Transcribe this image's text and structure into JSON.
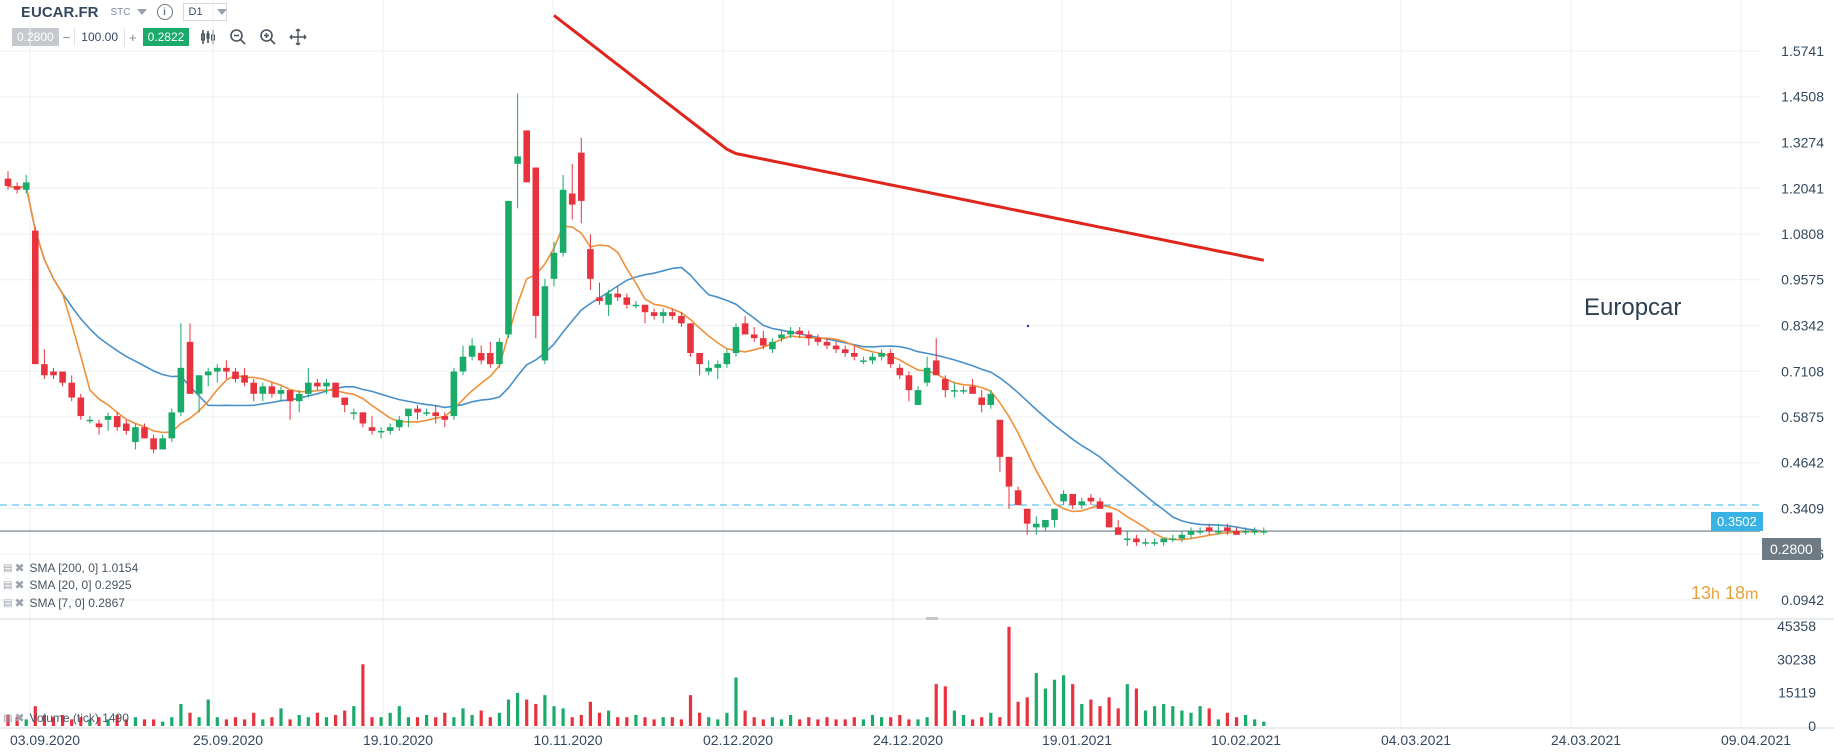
{
  "toolbar": {
    "symbol": "EUCAR.FR",
    "exchange": "STC",
    "timeframe": "D1",
    "bid": "0.2800",
    "quantity": "100.00",
    "ask": "0.2822",
    "icons": [
      "chart-type-icon",
      "zoom-out-icon",
      "zoom-in-icon",
      "crosshair-icon"
    ]
  },
  "watermark": "Europcar",
  "countdown": {
    "h": "13",
    "h_unit": "h",
    "m": "18",
    "m_unit": "m"
  },
  "legends": {
    "sma200": "SMA [200, 0] 1.0154",
    "sma20": "SMA [20, 0] 0.2925",
    "sma7": "SMA [7, 0] 0.2867",
    "volume": "Volume (tick) 1490"
  },
  "badges": {
    "current": "0.2800",
    "level": "0.3502"
  },
  "colors": {
    "up": "#1aaa6a",
    "down": "#e8333f",
    "sma200": "#e0251d",
    "sma20": "#4a90c8",
    "sma7": "#f0913a",
    "level_line": "#39b3e6",
    "current_line": "#6e7a84"
  },
  "chart_data": {
    "type": "candlestick",
    "price_ticks": [
      "1.5741",
      "1.4508",
      "1.3274",
      "1.2041",
      "1.0808",
      "0.9575",
      "0.8342",
      "0.7108",
      "0.5875",
      "0.4642",
      "0.3409",
      "0.2176",
      "0.0942"
    ],
    "volume_ticks": [
      "45358",
      "30238",
      "15119",
      "0"
    ],
    "x_ticks": [
      "03.09.2020",
      "25.09.2020",
      "19.10.2020",
      "10.11.2020",
      "02.12.2020",
      "24.12.2020",
      "19.01.2021",
      "10.02.2021",
      "04.03.2021",
      "24.03.2021",
      "09.04.2021"
    ],
    "current_price": 0.28,
    "level_price": 0.3502,
    "candles": [
      [
        1.23,
        1.25,
        1.2,
        1.21
      ],
      [
        1.21,
        1.22,
        1.19,
        1.2
      ],
      [
        1.2,
        1.24,
        1.19,
        1.22
      ],
      [
        1.09,
        1.1,
        0.73,
        0.73
      ],
      [
        0.73,
        0.77,
        0.69,
        0.7
      ],
      [
        0.71,
        0.72,
        0.69,
        0.7
      ],
      [
        0.71,
        0.71,
        0.67,
        0.68
      ],
      [
        0.68,
        0.7,
        0.63,
        0.64
      ],
      [
        0.64,
        0.65,
        0.58,
        0.59
      ],
      [
        0.58,
        0.59,
        0.57,
        0.58
      ],
      [
        0.57,
        0.58,
        0.54,
        0.56
      ],
      [
        0.58,
        0.6,
        0.55,
        0.59
      ],
      [
        0.59,
        0.6,
        0.55,
        0.56
      ],
      [
        0.57,
        0.58,
        0.54,
        0.55
      ],
      [
        0.52,
        0.57,
        0.5,
        0.56
      ],
      [
        0.56,
        0.57,
        0.53,
        0.53
      ],
      [
        0.53,
        0.54,
        0.49,
        0.5
      ],
      [
        0.5,
        0.54,
        0.5,
        0.53
      ],
      [
        0.53,
        0.61,
        0.52,
        0.6
      ],
      [
        0.6,
        0.84,
        0.59,
        0.72
      ],
      [
        0.79,
        0.84,
        0.65,
        0.65
      ],
      [
        0.65,
        0.7,
        0.6,
        0.7
      ],
      [
        0.7,
        0.72,
        0.67,
        0.71
      ],
      [
        0.71,
        0.73,
        0.68,
        0.72
      ],
      [
        0.72,
        0.74,
        0.69,
        0.71
      ],
      [
        0.71,
        0.72,
        0.68,
        0.69
      ],
      [
        0.7,
        0.72,
        0.67,
        0.68
      ],
      [
        0.68,
        0.69,
        0.63,
        0.65
      ],
      [
        0.65,
        0.68,
        0.63,
        0.67
      ],
      [
        0.67,
        0.68,
        0.64,
        0.65
      ],
      [
        0.65,
        0.67,
        0.63,
        0.66
      ],
      [
        0.66,
        0.66,
        0.58,
        0.63
      ],
      [
        0.63,
        0.66,
        0.6,
        0.65
      ],
      [
        0.65,
        0.72,
        0.64,
        0.68
      ],
      [
        0.68,
        0.69,
        0.66,
        0.67
      ],
      [
        0.67,
        0.69,
        0.65,
        0.68
      ],
      [
        0.68,
        0.68,
        0.64,
        0.64
      ],
      [
        0.64,
        0.64,
        0.6,
        0.62
      ],
      [
        0.6,
        0.61,
        0.58,
        0.6
      ],
      [
        0.6,
        0.6,
        0.56,
        0.57
      ],
      [
        0.56,
        0.59,
        0.54,
        0.55
      ],
      [
        0.55,
        0.56,
        0.53,
        0.55
      ],
      [
        0.55,
        0.57,
        0.54,
        0.56
      ],
      [
        0.56,
        0.59,
        0.55,
        0.58
      ],
      [
        0.59,
        0.61,
        0.56,
        0.61
      ],
      [
        0.61,
        0.62,
        0.58,
        0.6
      ],
      [
        0.6,
        0.61,
        0.59,
        0.6
      ],
      [
        0.6,
        0.62,
        0.57,
        0.59
      ],
      [
        0.59,
        0.6,
        0.56,
        0.58
      ],
      [
        0.59,
        0.72,
        0.58,
        0.71
      ],
      [
        0.71,
        0.78,
        0.7,
        0.75
      ],
      [
        0.75,
        0.8,
        0.74,
        0.78
      ],
      [
        0.76,
        0.78,
        0.73,
        0.74
      ],
      [
        0.76,
        0.79,
        0.72,
        0.73
      ],
      [
        0.73,
        0.8,
        0.72,
        0.79
      ],
      [
        0.81,
        1.17,
        0.8,
        1.17
      ],
      [
        1.27,
        1.46,
        1.15,
        1.29
      ],
      [
        1.36,
        1.36,
        1.22,
        1.22
      ],
      [
        1.26,
        1.26,
        0.8,
        0.86
      ],
      [
        0.74,
        0.96,
        0.73,
        0.94
      ],
      [
        0.96,
        1.06,
        0.94,
        1.03
      ],
      [
        1.03,
        1.24,
        1.02,
        1.2
      ],
      [
        1.19,
        1.27,
        1.12,
        1.16
      ],
      [
        1.3,
        1.34,
        1.11,
        1.17
      ],
      [
        1.04,
        1.08,
        0.93,
        0.96
      ],
      [
        0.91,
        0.95,
        0.89,
        0.9
      ],
      [
        0.89,
        0.93,
        0.86,
        0.92
      ],
      [
        0.92,
        0.94,
        0.9,
        0.91
      ],
      [
        0.91,
        0.92,
        0.88,
        0.89
      ],
      [
        0.89,
        0.9,
        0.88,
        0.89
      ],
      [
        0.89,
        0.89,
        0.84,
        0.87
      ],
      [
        0.87,
        0.88,
        0.85,
        0.86
      ],
      [
        0.86,
        0.88,
        0.84,
        0.87
      ],
      [
        0.87,
        0.88,
        0.85,
        0.86
      ],
      [
        0.86,
        0.87,
        0.83,
        0.84
      ],
      [
        0.84,
        0.84,
        0.75,
        0.76
      ],
      [
        0.76,
        0.76,
        0.7,
        0.73
      ],
      [
        0.71,
        0.74,
        0.7,
        0.72
      ],
      [
        0.72,
        0.74,
        0.69,
        0.73
      ],
      [
        0.73,
        0.77,
        0.72,
        0.76
      ],
      [
        0.76,
        0.84,
        0.75,
        0.83
      ],
      [
        0.84,
        0.86,
        0.81,
        0.81
      ],
      [
        0.81,
        0.83,
        0.79,
        0.8
      ],
      [
        0.8,
        0.82,
        0.77,
        0.78
      ],
      [
        0.77,
        0.8,
        0.76,
        0.79
      ],
      [
        0.8,
        0.82,
        0.79,
        0.81
      ],
      [
        0.81,
        0.83,
        0.8,
        0.82
      ],
      [
        0.82,
        0.83,
        0.8,
        0.81
      ],
      [
        0.81,
        0.82,
        0.78,
        0.8
      ],
      [
        0.8,
        0.81,
        0.78,
        0.79
      ],
      [
        0.79,
        0.8,
        0.77,
        0.78
      ],
      [
        0.78,
        0.79,
        0.76,
        0.77
      ],
      [
        0.77,
        0.78,
        0.75,
        0.76
      ],
      [
        0.76,
        0.78,
        0.74,
        0.75
      ],
      [
        0.74,
        0.75,
        0.73,
        0.74
      ],
      [
        0.74,
        0.76,
        0.73,
        0.75
      ],
      [
        0.75,
        0.77,
        0.74,
        0.76
      ],
      [
        0.76,
        0.77,
        0.72,
        0.73
      ],
      [
        0.72,
        0.73,
        0.69,
        0.7
      ],
      [
        0.7,
        0.71,
        0.63,
        0.66
      ],
      [
        0.62,
        0.67,
        0.62,
        0.66
      ],
      [
        0.68,
        0.75,
        0.67,
        0.72
      ],
      [
        0.74,
        0.8,
        0.7,
        0.7
      ],
      [
        0.69,
        0.7,
        0.64,
        0.66
      ],
      [
        0.66,
        0.68,
        0.64,
        0.66
      ],
      [
        0.66,
        0.67,
        0.65,
        0.66
      ],
      [
        0.67,
        0.69,
        0.65,
        0.65
      ],
      [
        0.64,
        0.66,
        0.6,
        0.62
      ],
      [
        0.62,
        0.66,
        0.61,
        0.65
      ],
      [
        0.58,
        0.58,
        0.44,
        0.48
      ],
      [
        0.48,
        0.48,
        0.34,
        0.4
      ],
      [
        0.39,
        0.4,
        0.35,
        0.35
      ],
      [
        0.34,
        0.34,
        0.27,
        0.3
      ],
      [
        0.29,
        0.32,
        0.27,
        0.3
      ],
      [
        0.29,
        0.31,
        0.28,
        0.31
      ],
      [
        0.31,
        0.34,
        0.29,
        0.34
      ],
      [
        0.36,
        0.39,
        0.35,
        0.38
      ],
      [
        0.38,
        0.38,
        0.34,
        0.35
      ],
      [
        0.35,
        0.37,
        0.34,
        0.36
      ],
      [
        0.37,
        0.38,
        0.35,
        0.36
      ],
      [
        0.36,
        0.37,
        0.34,
        0.34
      ],
      [
        0.33,
        0.33,
        0.29,
        0.29
      ],
      [
        0.29,
        0.31,
        0.27,
        0.27
      ],
      [
        0.26,
        0.28,
        0.24,
        0.26
      ],
      [
        0.26,
        0.27,
        0.24,
        0.25
      ],
      [
        0.25,
        0.26,
        0.24,
        0.25
      ],
      [
        0.25,
        0.26,
        0.24,
        0.25
      ],
      [
        0.25,
        0.26,
        0.24,
        0.26
      ],
      [
        0.26,
        0.27,
        0.25,
        0.26
      ],
      [
        0.26,
        0.28,
        0.25,
        0.27
      ],
      [
        0.27,
        0.29,
        0.26,
        0.28
      ],
      [
        0.28,
        0.29,
        0.27,
        0.28
      ],
      [
        0.29,
        0.3,
        0.27,
        0.28
      ],
      [
        0.28,
        0.3,
        0.27,
        0.28
      ],
      [
        0.29,
        0.3,
        0.27,
        0.28
      ],
      [
        0.28,
        0.29,
        0.27,
        0.27
      ],
      [
        0.28,
        0.29,
        0.27,
        0.28
      ],
      [
        0.28,
        0.29,
        0.27,
        0.28
      ],
      [
        0.28,
        0.29,
        0.27,
        0.28
      ]
    ],
    "volumes": [
      5,
      4,
      3,
      9,
      5,
      4,
      5,
      3,
      4,
      3,
      4,
      3,
      5,
      3,
      4,
      3,
      3,
      2,
      4,
      10,
      6,
      4,
      12,
      4,
      3,
      4,
      3,
      6,
      3,
      4,
      8,
      3,
      5,
      4,
      6,
      4,
      5,
      7,
      9,
      28,
      4,
      4,
      6,
      9,
      4,
      4,
      5,
      4,
      6,
      4,
      8,
      5,
      7,
      4,
      6,
      12,
      15,
      12,
      10,
      14,
      9,
      8,
      4,
      5,
      11,
      6,
      7,
      4,
      4,
      5,
      4,
      3,
      4,
      4,
      3,
      14,
      6,
      4,
      3,
      6,
      22,
      7,
      4,
      3,
      4,
      3,
      5,
      3,
      4,
      3,
      4,
      3,
      3,
      4,
      3,
      5,
      4,
      4,
      5,
      3,
      3,
      4,
      19,
      18,
      7,
      5,
      3,
      4,
      6,
      4,
      45,
      11,
      13,
      24,
      17,
      21,
      23,
      19,
      10,
      12,
      9,
      13,
      8,
      19,
      17,
      7,
      9,
      10,
      9,
      7,
      6,
      9,
      8,
      3,
      6,
      4,
      5,
      3,
      2
    ],
    "volumes_scale": "thousands (approx.)"
  }
}
